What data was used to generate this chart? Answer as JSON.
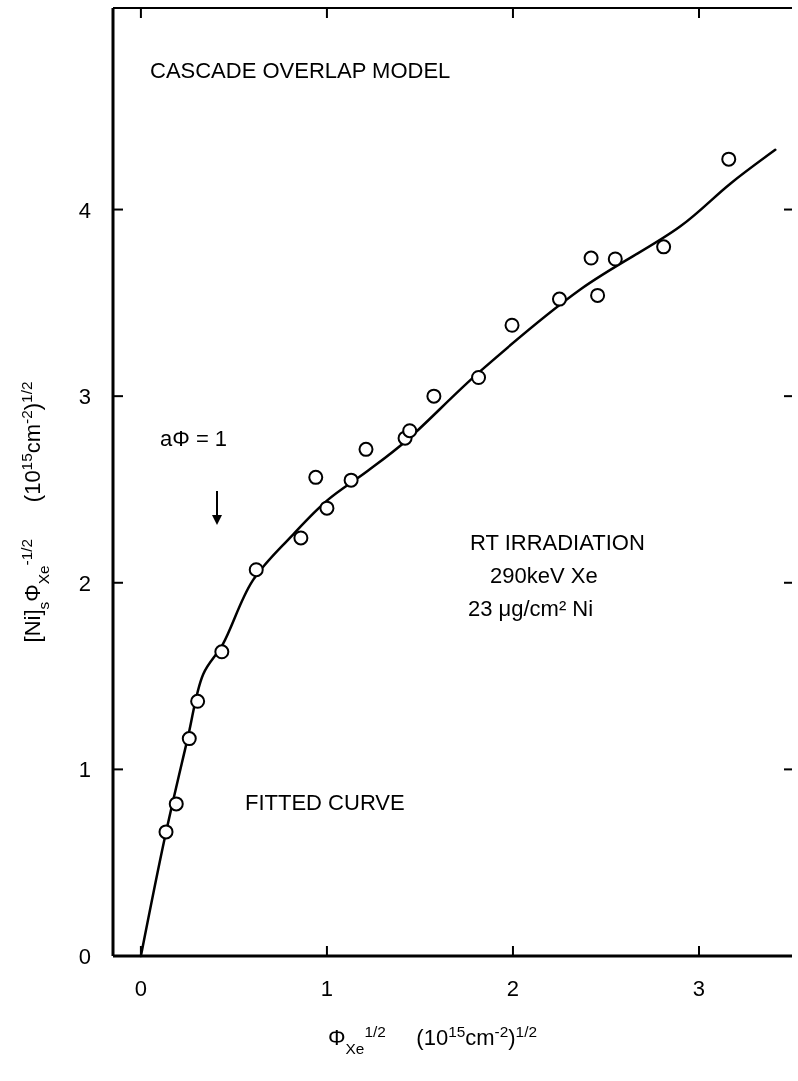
{
  "chart_data": {
    "type": "scatter",
    "xlabel": "Φ$_{Xe}$$^{1/2}$     (10$^{15}$cm$^{-2}$)$^{1/2}$",
    "ylabel": "[Ni]$_{s}$Φ$_{Xe}$$^{-1/2}$      (10$^{15}$cm$^{-2}$)$^{1/2}$",
    "xlim": [
      -0.15,
      3.5
    ],
    "ylim": [
      0,
      5.08
    ],
    "xticks": [
      0,
      1,
      2,
      3
    ],
    "yticks": [
      0,
      1,
      2,
      3,
      4
    ],
    "annotations": [
      "CASCADE OVERLAP MODEL",
      "aΦ = 1",
      "RT IRRADIATION",
      "290keV Xe",
      "23 μg/cm² Ni",
      "FITTED CURVE"
    ],
    "series": [
      {
        "color": "#000000",
        "marker": "circle",
        "x": [
          0.135,
          0.19,
          0.26,
          0.305,
          0.435,
          0.62,
          0.86,
          0.94,
          1.0,
          1.13,
          1.21,
          1.42,
          1.445,
          1.575,
          1.815,
          1.995,
          2.25,
          2.42,
          2.455,
          2.55,
          2.81,
          3.16
        ],
        "values": [
          0.665,
          0.815,
          1.165,
          1.365,
          1.63,
          2.07,
          2.24,
          2.565,
          2.4,
          2.55,
          2.715,
          2.775,
          2.815,
          3.0,
          3.1,
          3.38,
          3.52,
          3.74,
          3.54,
          3.735,
          3.8,
          4.27
        ]
      },
      {
        "type": "line",
        "color": "#000000",
        "marker": "none",
        "x": [
          0,
          0.13,
          0.25,
          0.335,
          0.44,
          0.6,
          0.81,
          1.0,
          1.22,
          1.425,
          1.82,
          2.36,
          2.9,
          3.17,
          3.41
        ],
        "values": [
          0,
          0.64,
          1.16,
          1.51,
          1.67,
          2.01,
          2.25,
          2.44,
          2.6,
          2.76,
          3.13,
          3.57,
          3.91,
          4.14,
          4.32
        ]
      }
    ]
  }
}
